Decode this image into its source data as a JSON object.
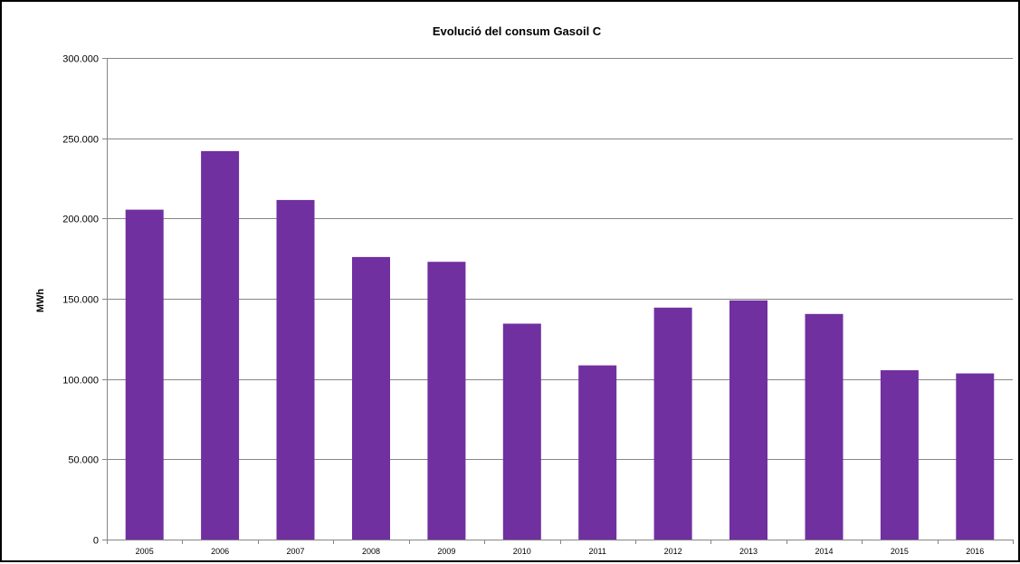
{
  "chart_data": {
    "type": "bar",
    "title": "Evolució del consum Gasoil C",
    "xlabel": "",
    "ylabel": "MWh",
    "categories": [
      "2005",
      "2006",
      "2007",
      "2008",
      "2009",
      "2010",
      "2011",
      "2012",
      "2013",
      "2014",
      "2015",
      "2016"
    ],
    "series": [
      {
        "values": [
          205500,
          242000,
          211500,
          176000,
          173000,
          134500,
          108500,
          144500,
          149000,
          140500,
          105500,
          103500
        ]
      }
    ],
    "ylim": [
      0,
      300000
    ],
    "y_ticks": [
      0,
      50000,
      100000,
      150000,
      200000,
      250000,
      300000
    ],
    "y_tick_labels": [
      "0",
      "50.000",
      "100.000",
      "150.000",
      "200.000",
      "250.000",
      "300.000"
    ],
    "grid": "horizontal",
    "legend": false,
    "colors": {
      "bar": "#7030A0",
      "gridline": "#868686",
      "axis": "#868686",
      "frame": "#000000"
    }
  }
}
